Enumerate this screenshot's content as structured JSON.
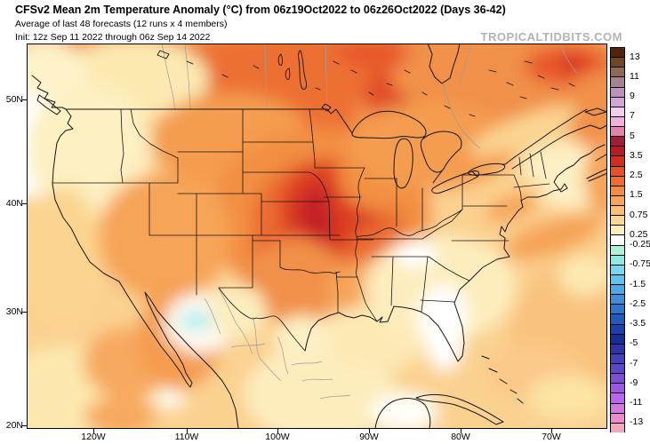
{
  "header": {
    "title": "CFSv2 Mean 2m Temperature Anomaly (°C) from 06z19Oct2022 to 06z26Oct2022 (Days 36-42)",
    "subtitle": "Average of last 48 forecasts (12 runs x 4 members)",
    "init_line": "Init: 12z Sep 11 2022 through 06z Sep 14 2022",
    "watermark": "TROPICALTIDBITS.COM"
  },
  "map": {
    "y_axis": {
      "ticks": [
        {
          "label": "50N",
          "pos": 112
        },
        {
          "label": "40N",
          "pos": 229
        },
        {
          "label": "30N",
          "pos": 351
        },
        {
          "label": "20N",
          "pos": 479
        }
      ]
    },
    "x_axis": {
      "ticks": [
        {
          "label": "120W",
          "pos": 105
        },
        {
          "label": "110W",
          "pos": 210
        },
        {
          "label": "100W",
          "pos": 312
        },
        {
          "label": "90W",
          "pos": 415
        },
        {
          "label": "80W",
          "pos": 518
        },
        {
          "label": "70W",
          "pos": 620
        }
      ]
    }
  },
  "map_features": [
    {
      "region": "Central US (NE/KS/IA/MO)",
      "anomaly_c": "+3 to +4"
    },
    {
      "region": "Texas panhandle / Oklahoma",
      "anomaly_c": "+2.5 to +3"
    },
    {
      "region": "Most of Canada",
      "anomaly_c": "+1.5 to +3"
    },
    {
      "region": "Manitoba / N Ontario / Quebec spots",
      "anomaly_c": "+3 to +3.5"
    },
    {
      "region": "Pacific Northwest coast & offshore",
      "anomaly_c": "0 to +0.5"
    },
    {
      "region": "Southeast US (KY/TN/VA, Florida)",
      "anomaly_c": "0 to +0.5"
    },
    {
      "region": "Arizona-Sonora border",
      "anomaly_c": "-0.5 to -0.25"
    },
    {
      "region": "Western Atlantic",
      "anomaly_c": "+0.5 to +1.5"
    },
    {
      "region": "Gulf of Mexico / Mexico",
      "anomaly_c": "0 to +1"
    }
  ],
  "colorbar": {
    "units": "°C",
    "segments": [
      "#522508",
      "#6f4726",
      "#8c6a55",
      "#a5838f",
      "#bd93bd",
      "#d3a4d8",
      "#eeceeb",
      "#f3aede",
      "#e283ab",
      "#a01f38",
      "#b81b22",
      "#d32d20",
      "#e5512a",
      "#ee6c33",
      "#f58a43",
      "#f9a457",
      "#fbbd77",
      "#fdd795",
      "#feecba",
      "#ffffff",
      "#aaf2dc",
      "#8fe8e4",
      "#78d8f0",
      "#62c2ee",
      "#4fa8e4",
      "#3e8ed8",
      "#2f74cc",
      "#2459bc",
      "#1b42ac",
      "#132e96",
      "#2c34a8",
      "#4340bc",
      "#5d46c8",
      "#7c4ed6",
      "#9b58e2",
      "#bb64ec",
      "#d676e0",
      "#e88cd0",
      "#f2a8bc"
    ],
    "labels": [
      {
        "value": "13",
        "boundary": 1
      },
      {
        "value": "11",
        "boundary": 3
      },
      {
        "value": "9",
        "boundary": 5
      },
      {
        "value": "7",
        "boundary": 7
      },
      {
        "value": "5",
        "boundary": 9
      },
      {
        "value": "3.5",
        "boundary": 11
      },
      {
        "value": "2.5",
        "boundary": 13
      },
      {
        "value": "1.5",
        "boundary": 15
      },
      {
        "value": "0.75",
        "boundary": 17
      },
      {
        "value": "0.25",
        "boundary": 19
      },
      {
        "value": "-0.25",
        "boundary": 20
      },
      {
        "value": "-0.75",
        "boundary": 22
      },
      {
        "value": "-1.5",
        "boundary": 24
      },
      {
        "value": "-2.5",
        "boundary": 26
      },
      {
        "value": "-3.5",
        "boundary": 28
      },
      {
        "value": "-5",
        "boundary": 30
      },
      {
        "value": "-7",
        "boundary": 32
      },
      {
        "value": "-9",
        "boundary": 34
      },
      {
        "value": "-11",
        "boundary": 36
      },
      {
        "value": "-13",
        "boundary": 38
      }
    ]
  }
}
